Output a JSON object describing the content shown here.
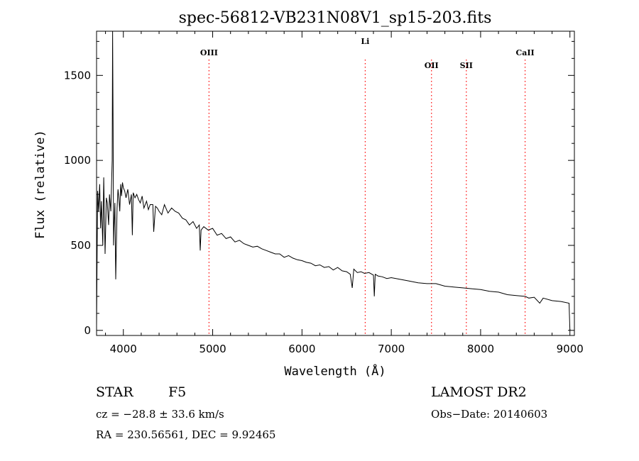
{
  "chart_data": {
    "type": "line",
    "title": "spec-56812-VB231N08V1_sp15-203.fits",
    "xlabel": "Wavelength (Å)",
    "ylabel": "Flux (relative)",
    "xlim": [
      3700,
      9050
    ],
    "ylim": [
      -30,
      1760
    ],
    "xticks": [
      4000,
      5000,
      6000,
      7000,
      8000,
      9000
    ],
    "yticks": [
      0,
      500,
      1000,
      1500
    ],
    "grid": false,
    "line_color": "#000000",
    "marker_color": "#ff0000",
    "line_markers": [
      {
        "label": "OIII",
        "x": 4959
      },
      {
        "label": "Li",
        "x": 6708
      },
      {
        "label": "OII",
        "x": 7450
      },
      {
        "label": "SII",
        "x": 7840
      },
      {
        "label": "CaII",
        "x": 8498
      }
    ],
    "series": [
      {
        "x": [
          3700,
          3712,
          3722,
          3735,
          3745,
          3755,
          3770,
          3780,
          3795,
          3810,
          3820,
          3835,
          3845,
          3860,
          3875,
          3880,
          3885,
          3890,
          3895,
          3905,
          3915,
          3930,
          3940,
          3950,
          3960,
          3970,
          3980,
          3990,
          4000,
          4015,
          4030,
          4050,
          4070,
          4090,
          4101,
          4110,
          4130,
          4150,
          4170,
          4190,
          4210,
          4230,
          4260,
          4280,
          4300,
          4330,
          4340,
          4360,
          4380,
          4400,
          4430,
          4460,
          4500,
          4540,
          4580,
          4620,
          4660,
          4700,
          4740,
          4780,
          4820,
          4850,
          4861,
          4870,
          4900,
          4950,
          5000,
          5050,
          5100,
          5150,
          5200,
          5250,
          5300,
          5350,
          5400,
          5450,
          5500,
          5550,
          5600,
          5650,
          5700,
          5750,
          5800,
          5850,
          5900,
          5950,
          6000,
          6050,
          6100,
          6150,
          6200,
          6250,
          6300,
          6350,
          6400,
          6450,
          6500,
          6540,
          6563,
          6580,
          6620,
          6660,
          6700,
          6750,
          6800,
          6810,
          6820,
          6850,
          6900,
          6950,
          7000,
          7100,
          7200,
          7300,
          7400,
          7500,
          7600,
          7700,
          7800,
          7900,
          8000,
          8100,
          8200,
          8300,
          8400,
          8500,
          8540,
          8600,
          8662,
          8700,
          8800,
          8900,
          8990,
          9000
        ],
        "y": [
          30,
          820,
          700,
          860,
          600,
          760,
          500,
          900,
          450,
          780,
          750,
          620,
          800,
          700,
          1000,
          1760,
          1200,
          500,
          600,
          750,
          300,
          720,
          830,
          780,
          700,
          860,
          790,
          870,
          840,
          820,
          780,
          830,
          740,
          800,
          560,
          810,
          780,
          800,
          770,
          750,
          790,
          720,
          760,
          710,
          740,
          740,
          580,
          730,
          720,
          700,
          680,
          740,
          690,
          720,
          700,
          690,
          660,
          650,
          620,
          640,
          600,
          620,
          470,
          590,
          610,
          590,
          600,
          560,
          570,
          540,
          550,
          520,
          530,
          510,
          500,
          490,
          495,
          480,
          470,
          460,
          450,
          450,
          430,
          440,
          425,
          415,
          410,
          400,
          395,
          380,
          385,
          370,
          375,
          355,
          370,
          350,
          345,
          330,
          250,
          360,
          340,
          345,
          335,
          340,
          325,
          200,
          330,
          320,
          315,
          305,
          310,
          300,
          290,
          280,
          275,
          275,
          260,
          255,
          250,
          245,
          240,
          230,
          225,
          210,
          205,
          200,
          190,
          195,
          160,
          190,
          175,
          170,
          160,
          0
        ]
      }
    ]
  },
  "footer": {
    "object_class": "STAR",
    "subclass": "F5",
    "survey": "LAMOST DR2",
    "cz": "cz = −28.8 ± 33.6 km/s",
    "obs_date": "Obs−Date: 20140603",
    "coords": "RA = 230.56561, DEC =   9.92465"
  }
}
